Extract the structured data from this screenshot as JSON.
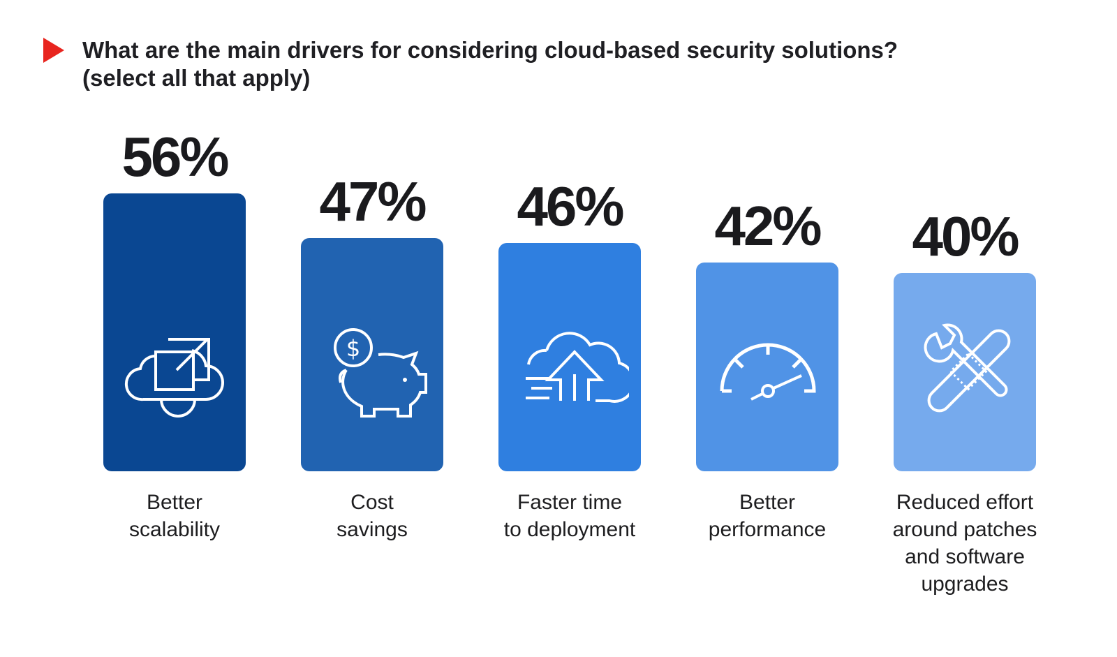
{
  "title": "What are the main drivers for considering cloud-based security solutions?",
  "subtitle": "(select all that apply)",
  "colors": {
    "accent": "#e8251f",
    "bars": [
      "#0a4792",
      "#2163b1",
      "#2f7fe0",
      "#5093e6",
      "#76aaed"
    ]
  },
  "chart_data": {
    "type": "bar",
    "title": "What are the main drivers for considering cloud-based security solutions?",
    "subtitle": "(select all that apply)",
    "categories": [
      "Better scalability",
      "Cost savings",
      "Faster time to deployment",
      "Better performance",
      "Reduced effort around patches and software upgrades"
    ],
    "values": [
      56,
      47,
      46,
      42,
      40
    ],
    "value_labels": [
      "56%",
      "47%",
      "46%",
      "42%",
      "40%"
    ],
    "category_lines": [
      [
        "Better",
        "scalability"
      ],
      [
        "Cost",
        "savings"
      ],
      [
        "Faster time",
        "to deployment"
      ],
      [
        "Better",
        "performance"
      ],
      [
        "Reduced effort",
        "around patches",
        "and software",
        "upgrades"
      ]
    ],
    "icons": [
      "cloud-scale-icon",
      "piggy-bank-icon",
      "cloud-upload-icon",
      "speedometer-icon",
      "tools-icon"
    ],
    "unit": "%",
    "ylim": [
      0,
      56
    ],
    "grid": false,
    "legend": "none"
  }
}
